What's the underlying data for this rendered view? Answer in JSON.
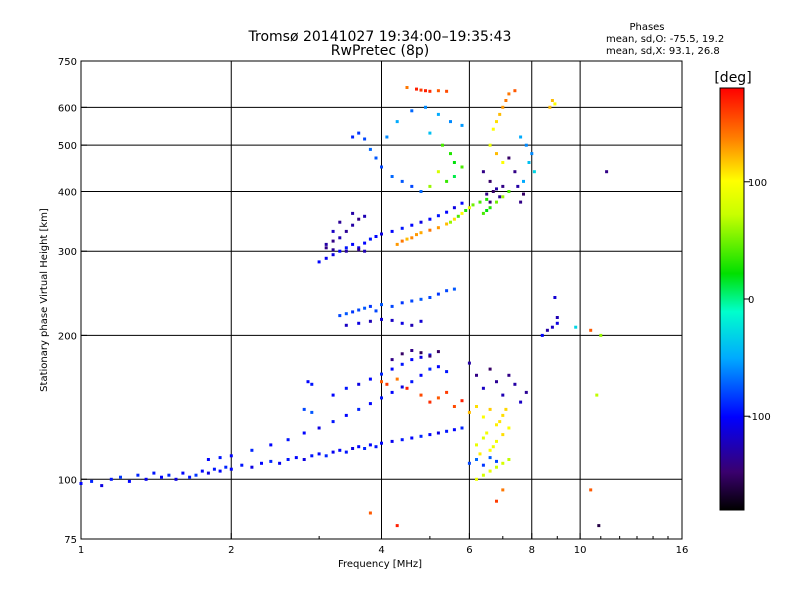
{
  "chart_data": {
    "type": "scatter",
    "title_line1": "Tromsø 20141027 19:34:00–19:35:43",
    "title_line2": "RwPretec (8p)",
    "stats": {
      "heading": "Phases",
      "line_o": "mean, sd,O: -75.5, 19.2",
      "line_x": "mean, sd,X:  93.1, 26.8"
    },
    "xlabel": "Frequency [MHz]",
    "ylabel": "Stationary phase Virtual Height [km]",
    "xscale": "log",
    "yscale": "log",
    "xlim": [
      1,
      16
    ],
    "ylim": [
      75,
      750
    ],
    "xticks": [
      1,
      2,
      4,
      6,
      8,
      10,
      16
    ],
    "xtick_labels": [
      "1",
      "2",
      "4",
      "6",
      "8",
      "10",
      "16"
    ],
    "yticks": [
      75,
      100,
      200,
      300,
      400,
      500,
      600,
      750
    ],
    "ytick_labels": [
      "75",
      "100",
      "200",
      "300",
      "400",
      "500",
      "600",
      "750"
    ],
    "x_gridlines": [
      2,
      4,
      6,
      8,
      10
    ],
    "y_gridlines": [
      100,
      200,
      300,
      400,
      500,
      600
    ],
    "grid": true,
    "colorbar": {
      "label": "[deg]",
      "range": [
        -180,
        180
      ],
      "ticks": [
        100,
        0,
        -100
      ],
      "tick_labels": [
        "100",
        "0",
        "-100"
      ]
    },
    "points": [
      [
        1.0,
        98,
        -100
      ],
      [
        1.05,
        99,
        -90
      ],
      [
        1.1,
        97,
        -110
      ],
      [
        1.15,
        100,
        -95
      ],
      [
        1.2,
        101,
        -85
      ],
      [
        1.25,
        99,
        -100
      ],
      [
        1.3,
        102,
        -90
      ],
      [
        1.35,
        100,
        -105
      ],
      [
        1.4,
        103,
        -95
      ],
      [
        1.45,
        101,
        -100
      ],
      [
        1.5,
        102,
        -90
      ],
      [
        1.55,
        100,
        -110
      ],
      [
        1.6,
        103,
        -100
      ],
      [
        1.65,
        101,
        -95
      ],
      [
        1.7,
        102,
        -85
      ],
      [
        1.75,
        104,
        -100
      ],
      [
        1.8,
        103,
        -110
      ],
      [
        1.85,
        105,
        -95
      ],
      [
        1.9,
        104,
        -100
      ],
      [
        1.95,
        106,
        -90
      ],
      [
        2.0,
        105,
        -100
      ],
      [
        2.1,
        107,
        -95
      ],
      [
        2.2,
        106,
        -110
      ],
      [
        2.3,
        108,
        -100
      ],
      [
        2.4,
        109,
        -90
      ],
      [
        2.5,
        108,
        -105
      ],
      [
        2.6,
        110,
        -95
      ],
      [
        2.7,
        111,
        -100
      ],
      [
        2.8,
        110,
        -110
      ],
      [
        2.9,
        112,
        -95
      ],
      [
        3.0,
        113,
        -100
      ],
      [
        3.1,
        112,
        -90
      ],
      [
        3.2,
        114,
        -105
      ],
      [
        3.3,
        115,
        -100
      ],
      [
        3.4,
        114,
        -95
      ],
      [
        3.5,
        116,
        -110
      ],
      [
        3.6,
        117,
        -100
      ],
      [
        3.7,
        116,
        -90
      ],
      [
        3.8,
        118,
        -100
      ],
      [
        3.9,
        117,
        -95
      ],
      [
        4.0,
        119,
        -100
      ],
      [
        4.2,
        120,
        -105
      ],
      [
        4.4,
        121,
        -95
      ],
      [
        4.6,
        122,
        -100
      ],
      [
        4.8,
        123,
        -90
      ],
      [
        5.0,
        124,
        -100
      ],
      [
        5.2,
        125,
        -110
      ],
      [
        5.4,
        126,
        -95
      ],
      [
        5.6,
        127,
        -100
      ],
      [
        5.8,
        128,
        -90
      ],
      [
        6.0,
        108,
        -80
      ],
      [
        6.2,
        110,
        -70
      ],
      [
        6.4,
        107,
        -85
      ],
      [
        6.6,
        111,
        -75
      ],
      [
        6.8,
        109,
        -80
      ],
      [
        1.8,
        110,
        -100
      ],
      [
        1.9,
        111,
        -95
      ],
      [
        2.0,
        112,
        -100
      ],
      [
        2.2,
        115,
        -90
      ],
      [
        2.4,
        118,
        -100
      ],
      [
        2.6,
        121,
        -95
      ],
      [
        2.8,
        125,
        -100
      ],
      [
        3.0,
        128,
        -110
      ],
      [
        3.2,
        132,
        -95
      ],
      [
        3.4,
        136,
        -100
      ],
      [
        3.6,
        140,
        -90
      ],
      [
        3.8,
        144,
        -100
      ],
      [
        4.0,
        148,
        -95
      ],
      [
        4.2,
        152,
        -100
      ],
      [
        4.4,
        156,
        -110
      ],
      [
        4.6,
        160,
        -95
      ],
      [
        4.8,
        165,
        -100
      ],
      [
        5.0,
        170,
        -90
      ],
      [
        5.2,
        172,
        -100
      ],
      [
        5.4,
        168,
        -95
      ],
      [
        3.2,
        150,
        -100
      ],
      [
        3.4,
        155,
        -95
      ],
      [
        3.6,
        158,
        -110
      ],
      [
        3.8,
        162,
        -100
      ],
      [
        4.0,
        166,
        -90
      ],
      [
        4.2,
        170,
        -100
      ],
      [
        4.4,
        174,
        -95
      ],
      [
        4.6,
        178,
        -100
      ],
      [
        4.8,
        180,
        -110
      ],
      [
        5.0,
        182,
        -95
      ],
      [
        4.0,
        160,
        150
      ],
      [
        4.1,
        158,
        160
      ],
      [
        4.3,
        162,
        140
      ],
      [
        4.5,
        155,
        170
      ],
      [
        4.8,
        150,
        155
      ],
      [
        5.0,
        145,
        165
      ],
      [
        5.2,
        148,
        150
      ],
      [
        5.4,
        152,
        160
      ],
      [
        5.6,
        142,
        155
      ],
      [
        5.8,
        146,
        170
      ],
      [
        6.0,
        138,
        120
      ],
      [
        6.2,
        142,
        110
      ],
      [
        6.4,
        135,
        100
      ],
      [
        6.6,
        140,
        115
      ],
      [
        6.8,
        130,
        105
      ],
      [
        7.0,
        136,
        110
      ],
      [
        7.2,
        128,
        100
      ],
      [
        6.5,
        125,
        95
      ],
      [
        6.9,
        132,
        108
      ],
      [
        7.1,
        140,
        112
      ],
      [
        6.2,
        118,
        90
      ],
      [
        6.4,
        122,
        85
      ],
      [
        6.6,
        115,
        100
      ],
      [
        6.8,
        120,
        95
      ],
      [
        7.0,
        124,
        110
      ],
      [
        6.3,
        113,
        105
      ],
      [
        6.7,
        117,
        92
      ],
      [
        6.0,
        175,
        -130
      ],
      [
        6.2,
        165,
        -140
      ],
      [
        6.4,
        155,
        -120
      ],
      [
        6.6,
        170,
        -150
      ],
      [
        6.8,
        160,
        -135
      ],
      [
        7.0,
        150,
        -125
      ],
      [
        7.2,
        165,
        -140
      ],
      [
        7.4,
        158,
        -130
      ],
      [
        7.6,
        145,
        -120
      ],
      [
        7.8,
        152,
        -135
      ],
      [
        4.4,
        183,
        -150
      ],
      [
        4.6,
        186,
        -140
      ],
      [
        4.8,
        184,
        -155
      ],
      [
        5.0,
        181,
        -145
      ],
      [
        5.2,
        185,
        -150
      ],
      [
        4.2,
        178,
        -140
      ],
      [
        2.85,
        160,
        -100
      ],
      [
        2.9,
        158,
        -95
      ],
      [
        2.8,
        140,
        -80
      ],
      [
        2.9,
        138,
        -75
      ],
      [
        3.3,
        220,
        -80
      ],
      [
        3.4,
        222,
        -75
      ],
      [
        3.5,
        224,
        -85
      ],
      [
        3.6,
        226,
        -80
      ],
      [
        3.7,
        228,
        -75
      ],
      [
        3.8,
        230,
        -85
      ],
      [
        3.9,
        225,
        -80
      ],
      [
        4.0,
        232,
        -75
      ],
      [
        4.2,
        230,
        -80
      ],
      [
        4.4,
        234,
        -85
      ],
      [
        4.6,
        236,
        -80
      ],
      [
        4.8,
        238,
        -75
      ],
      [
        5.0,
        240,
        -80
      ],
      [
        5.2,
        244,
        -85
      ],
      [
        5.4,
        248,
        -80
      ],
      [
        5.6,
        250,
        -75
      ],
      [
        3.4,
        210,
        -120
      ],
      [
        3.6,
        212,
        -110
      ],
      [
        3.8,
        214,
        -125
      ],
      [
        4.0,
        216,
        -115
      ],
      [
        4.2,
        215,
        -120
      ],
      [
        4.4,
        212,
        -110
      ],
      [
        4.6,
        210,
        -125
      ],
      [
        4.8,
        214,
        -115
      ],
      [
        8.8,
        208,
        -120
      ],
      [
        9.0,
        212,
        -110
      ],
      [
        8.6,
        205,
        -130
      ],
      [
        9.0,
        218,
        -125
      ],
      [
        8.4,
        200,
        -100
      ],
      [
        8.9,
        240,
        -115
      ],
      [
        10.5,
        205,
        150
      ],
      [
        9.8,
        208,
        -30
      ],
      [
        11.0,
        200,
        60
      ],
      [
        10.8,
        150,
        70
      ],
      [
        3.0,
        285,
        -100
      ],
      [
        3.1,
        290,
        -105
      ],
      [
        3.2,
        295,
        -110
      ],
      [
        3.3,
        300,
        -100
      ],
      [
        3.4,
        305,
        -95
      ],
      [
        3.5,
        310,
        -100
      ],
      [
        3.6,
        305,
        -110
      ],
      [
        3.7,
        312,
        -100
      ],
      [
        3.8,
        318,
        -95
      ],
      [
        3.9,
        322,
        -100
      ],
      [
        4.0,
        326,
        -110
      ],
      [
        4.2,
        330,
        -100
      ],
      [
        4.4,
        335,
        -95
      ],
      [
        4.6,
        340,
        -100
      ],
      [
        4.8,
        345,
        -110
      ],
      [
        5.0,
        350,
        -100
      ],
      [
        5.2,
        356,
        -95
      ],
      [
        5.4,
        362,
        -100
      ],
      [
        5.6,
        370,
        -110
      ],
      [
        5.8,
        378,
        -100
      ],
      [
        3.1,
        310,
        -130
      ],
      [
        3.2,
        315,
        -140
      ],
      [
        3.3,
        320,
        -125
      ],
      [
        3.4,
        330,
        -135
      ],
      [
        3.5,
        340,
        -130
      ],
      [
        3.6,
        350,
        -140
      ],
      [
        3.7,
        355,
        -125
      ],
      [
        3.3,
        345,
        -135
      ],
      [
        3.5,
        360,
        -130
      ],
      [
        3.2,
        330,
        -120
      ],
      [
        3.1,
        305,
        -140
      ],
      [
        3.2,
        302,
        -135
      ],
      [
        3.4,
        300,
        -130
      ],
      [
        3.6,
        302,
        -140
      ],
      [
        3.7,
        300,
        -125
      ],
      [
        4.3,
        310,
        130
      ],
      [
        4.4,
        315,
        140
      ],
      [
        4.5,
        318,
        120
      ],
      [
        4.6,
        320,
        135
      ],
      [
        4.7,
        325,
        130
      ],
      [
        4.8,
        328,
        125
      ],
      [
        5.0,
        332,
        140
      ],
      [
        5.2,
        336,
        130
      ],
      [
        5.4,
        342,
        120
      ],
      [
        5.6,
        350,
        110
      ],
      [
        5.8,
        360,
        100
      ],
      [
        6.0,
        370,
        90
      ],
      [
        5.5,
        345,
        60
      ],
      [
        5.7,
        355,
        40
      ],
      [
        5.9,
        365,
        30
      ],
      [
        6.1,
        375,
        50
      ],
      [
        6.3,
        380,
        40
      ],
      [
        6.5,
        385,
        30
      ],
      [
        3.5,
        520,
        -90
      ],
      [
        3.6,
        530,
        -85
      ],
      [
        3.7,
        515,
        -80
      ],
      [
        3.8,
        490,
        -70
      ],
      [
        3.9,
        470,
        -75
      ],
      [
        4.0,
        450,
        -80
      ],
      [
        4.2,
        430,
        -70
      ],
      [
        4.4,
        420,
        -75
      ],
      [
        4.6,
        410,
        -80
      ],
      [
        4.8,
        400,
        -70
      ],
      [
        4.1,
        520,
        -60
      ],
      [
        4.3,
        560,
        -50
      ],
      [
        4.6,
        590,
        -70
      ],
      [
        4.9,
        600,
        -60
      ],
      [
        5.2,
        580,
        -50
      ],
      [
        5.5,
        560,
        -60
      ],
      [
        5.8,
        550,
        -55
      ],
      [
        5.0,
        530,
        -40
      ],
      [
        4.7,
        655,
        170
      ],
      [
        4.8,
        652,
        160
      ],
      [
        4.9,
        650,
        170
      ],
      [
        5.0,
        648,
        165
      ],
      [
        5.2,
        650,
        150
      ],
      [
        5.4,
        648,
        155
      ],
      [
        4.5,
        660,
        140
      ],
      [
        5.3,
        500,
        40
      ],
      [
        5.5,
        480,
        30
      ],
      [
        5.6,
        460,
        20
      ],
      [
        5.8,
        450,
        40
      ],
      [
        5.6,
        430,
        10
      ],
      [
        5.4,
        420,
        35
      ],
      [
        5.0,
        410,
        60
      ],
      [
        5.2,
        440,
        80
      ],
      [
        6.4,
        440,
        -140
      ],
      [
        6.6,
        420,
        -150
      ],
      [
        6.8,
        405,
        -130
      ],
      [
        6.5,
        395,
        -140
      ],
      [
        6.7,
        400,
        -150
      ],
      [
        6.9,
        390,
        -135
      ],
      [
        6.6,
        380,
        -145
      ],
      [
        7.0,
        410,
        -140
      ],
      [
        6.8,
        560,
        110
      ],
      [
        6.9,
        580,
        120
      ],
      [
        7.0,
        600,
        130
      ],
      [
        7.1,
        620,
        140
      ],
      [
        6.7,
        540,
        100
      ],
      [
        6.6,
        500,
        90
      ],
      [
        6.8,
        480,
        120
      ],
      [
        7.0,
        460,
        100
      ],
      [
        7.2,
        470,
        -150
      ],
      [
        7.4,
        440,
        -140
      ],
      [
        7.5,
        410,
        -130
      ],
      [
        7.7,
        395,
        -150
      ],
      [
        7.6,
        380,
        -140
      ],
      [
        6.4,
        360,
        40
      ],
      [
        6.6,
        370,
        30
      ],
      [
        6.8,
        380,
        50
      ],
      [
        6.5,
        365,
        20
      ],
      [
        7.0,
        390,
        60
      ],
      [
        7.2,
        400,
        40
      ],
      [
        7.8,
        500,
        -60
      ],
      [
        7.6,
        520,
        -50
      ],
      [
        8.0,
        480,
        -60
      ],
      [
        7.9,
        460,
        -40
      ],
      [
        7.7,
        420,
        -50
      ],
      [
        8.1,
        440,
        -30
      ],
      [
        8.8,
        620,
        120
      ],
      [
        8.9,
        610,
        100
      ],
      [
        8.7,
        600,
        120
      ],
      [
        7.2,
        640,
        140
      ],
      [
        7.4,
        650,
        150
      ],
      [
        11.3,
        440,
        -140
      ],
      [
        10.9,
        80,
        -160
      ],
      [
        10.5,
        95,
        150
      ],
      [
        6.8,
        90,
        160
      ],
      [
        7.0,
        95,
        140
      ],
      [
        4.3,
        80,
        170
      ],
      [
        3.8,
        85,
        150
      ],
      [
        6.2,
        100,
        90
      ],
      [
        6.4,
        102,
        80
      ],
      [
        6.6,
        104,
        90
      ],
      [
        6.8,
        106,
        75
      ],
      [
        7.0,
        108,
        80
      ],
      [
        7.2,
        110,
        70
      ]
    ]
  }
}
